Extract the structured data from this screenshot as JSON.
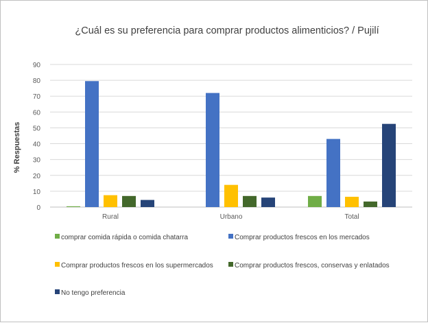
{
  "chart_data": {
    "type": "bar",
    "title": "¿Cuál es su preferencia para comprar productos alimenticios? / Pujilí",
    "ylabel": "% Respuestas",
    "xlabel": "",
    "ylim": [
      0,
      90
    ],
    "yticks": [
      "0",
      "10",
      "20",
      "30",
      "40",
      "50",
      "60",
      "70",
      "80",
      "90"
    ],
    "grid": true,
    "legend_position": "bottom",
    "categories": [
      "Rural",
      "Urbano",
      "Total"
    ],
    "series": [
      {
        "name": "comprar comida rápida o comida chatarra",
        "color": "#70ad47",
        "values": [
          0.5,
          0,
          7
        ]
      },
      {
        "name": "Comprar productos frescos en los mercados",
        "color": "#4472c4",
        "values": [
          79.5,
          72,
          43
        ]
      },
      {
        "name": "Comprar productos frescos en los supermercados",
        "color": "#ffc000",
        "values": [
          7.5,
          14,
          6.5
        ]
      },
      {
        "name": "Comprar productos frescos, conservas y enlatados",
        "color": "#43682b",
        "values": [
          7,
          7,
          3.5
        ]
      },
      {
        "name": "No tengo preferencia",
        "color": "#264478",
        "values": [
          4.5,
          6,
          52.5
        ]
      }
    ]
  }
}
